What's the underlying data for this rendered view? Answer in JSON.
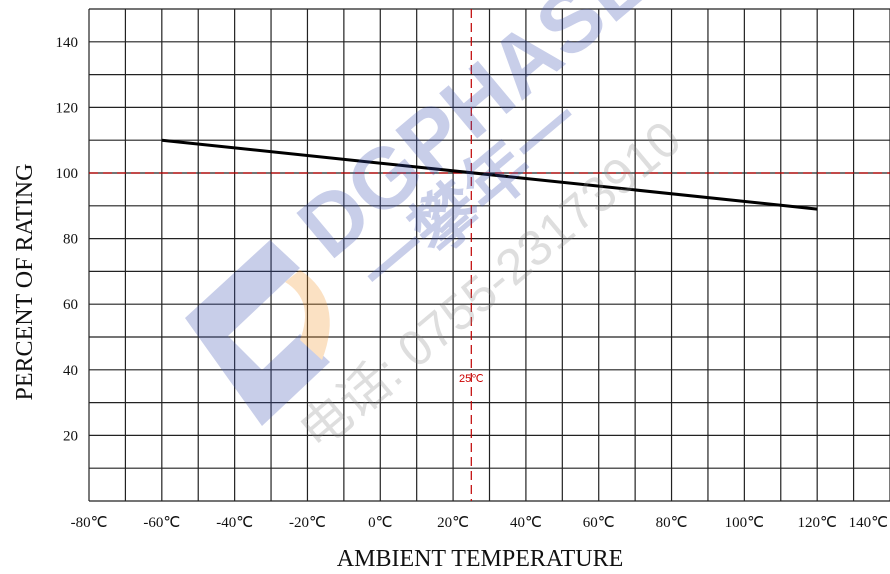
{
  "chart_data": {
    "type": "line",
    "title": "",
    "xlabel": "AMBIENT TEMPERATURE",
    "ylabel": "PERCENT OF RATING",
    "xlim": [
      -80,
      140
    ],
    "ylim": [
      0,
      150
    ],
    "x_ticks": [
      "-80℃",
      "-60℃",
      "-40℃",
      "-20℃",
      "0℃",
      "20℃",
      "40℃",
      "60℃",
      "80℃",
      "100℃",
      "120℃",
      "140℃"
    ],
    "y_ticks": [
      "20",
      "40",
      "60",
      "80",
      "100",
      "120",
      "140"
    ],
    "grid": true,
    "series": [
      {
        "x": [
          -60,
          120
        ],
        "y": [
          110,
          89
        ],
        "color": "#000000"
      }
    ],
    "reference_lines": {
      "vertical": {
        "x": 25,
        "label": "25℃",
        "color": "#c00000"
      },
      "horizontal": {
        "y": 100,
        "color": "#c00000"
      }
    }
  },
  "watermark": {
    "brand": "DGPHASE",
    "chinese": "一攀年一",
    "phone": "电话: 0755-23173910",
    "colors": {
      "blue": "#3b4fb0",
      "orange": "#f0922a"
    }
  }
}
